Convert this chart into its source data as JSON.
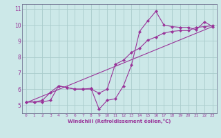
{
  "xlabel": "Windchill (Refroidissement éolien,°C)",
  "background_color": "#cce8e8",
  "grid_color": "#aacccc",
  "line_color": "#993399",
  "xlim": [
    -0.5,
    23.5
  ],
  "ylim": [
    4.5,
    11.3
  ],
  "xticks": [
    0,
    1,
    2,
    3,
    4,
    5,
    6,
    7,
    8,
    9,
    10,
    11,
    12,
    13,
    14,
    15,
    16,
    17,
    18,
    19,
    20,
    21,
    22,
    23
  ],
  "yticks": [
    5,
    6,
    7,
    8,
    9,
    10,
    11
  ],
  "line1_x": [
    0,
    1,
    2,
    3,
    4,
    5,
    6,
    7,
    8,
    9,
    10,
    11,
    12,
    13,
    14,
    15,
    16,
    17,
    18,
    19,
    20,
    21,
    22,
    23
  ],
  "line1_y": [
    5.2,
    5.2,
    5.2,
    5.3,
    6.2,
    6.1,
    6.0,
    6.0,
    6.05,
    4.75,
    5.3,
    5.4,
    6.2,
    7.5,
    9.6,
    10.25,
    10.85,
    10.0,
    9.9,
    9.85,
    9.85,
    9.7,
    10.2,
    9.9
  ],
  "line2_x": [
    0,
    1,
    2,
    3,
    4,
    5,
    6,
    7,
    8,
    9,
    10,
    11,
    12,
    13,
    14,
    15,
    16,
    17,
    18,
    19,
    20,
    21,
    22,
    23
  ],
  "line2_y": [
    5.2,
    5.2,
    5.3,
    5.8,
    6.2,
    6.1,
    6.0,
    6.0,
    6.0,
    5.75,
    6.0,
    7.55,
    7.8,
    8.3,
    8.55,
    9.05,
    9.25,
    9.5,
    9.6,
    9.65,
    9.65,
    9.85,
    9.9,
    9.95
  ],
  "line3_x": [
    0,
    23
  ],
  "line3_y": [
    5.15,
    9.9
  ]
}
